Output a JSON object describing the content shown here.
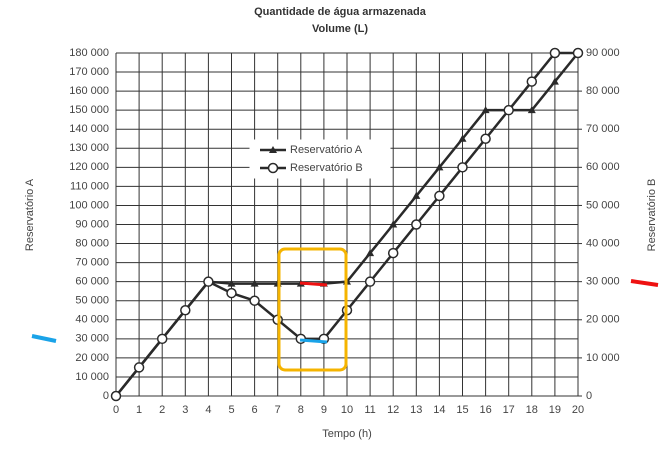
{
  "chart_data": {
    "type": "line",
    "title": "Quantidade de água armazenada",
    "subtitle": "Volume (L)",
    "x_label": "Tempo (h)",
    "y_label": "Reservatório A",
    "y2_label": "Reservatório B",
    "x": [
      0,
      1,
      2,
      3,
      4,
      5,
      6,
      7,
      8,
      9,
      10,
      11,
      12,
      13,
      14,
      15,
      16,
      17,
      18,
      19,
      20
    ],
    "xlim": [
      0,
      20
    ],
    "xticks": [
      0,
      1,
      2,
      3,
      4,
      5,
      6,
      7,
      8,
      9,
      10,
      11,
      12,
      13,
      14,
      15,
      16,
      17,
      18,
      19,
      20
    ],
    "ylim": [
      0,
      180000
    ],
    "yticks": [
      0,
      {
        "value": 10000,
        "label": "10 000"
      },
      {
        "value": 20000,
        "label": "20 000"
      },
      {
        "value": 30000,
        "label": "30 000"
      },
      {
        "value": 40000,
        "label": "40 000"
      },
      {
        "value": 50000,
        "label": "50 000"
      },
      {
        "value": 60000,
        "label": "60 000"
      },
      {
        "value": 70000,
        "label": "70 000"
      },
      {
        "value": 80000,
        "label": "80 000"
      },
      {
        "value": 90000,
        "label": "90 000"
      },
      {
        "value": 100000,
        "label": "100 000"
      },
      {
        "value": 110000,
        "label": "110 000"
      },
      {
        "value": 120000,
        "label": "120 000"
      },
      {
        "value": 130000,
        "label": "130 000"
      },
      {
        "value": 140000,
        "label": "140 000"
      },
      {
        "value": 150000,
        "label": "150 000"
      },
      {
        "value": 160000,
        "label": "160 000"
      },
      {
        "value": 170000,
        "label": "170 000"
      },
      {
        "value": 180000,
        "label": "180 000"
      }
    ],
    "y2lim": [
      0,
      90000
    ],
    "y2ticks": [
      0,
      {
        "value": 10000,
        "label": "10 000"
      },
      {
        "value": 20000,
        "label": "20 000"
      },
      {
        "value": 30000,
        "label": "30 000"
      },
      {
        "value": 40000,
        "label": "40 000"
      },
      {
        "value": 50000,
        "label": "50 000"
      },
      {
        "value": 60000,
        "label": "60 000"
      },
      {
        "value": 70000,
        "label": "70 000"
      },
      {
        "value": 80000,
        "label": "80 000"
      },
      {
        "value": 90000,
        "label": "90 000"
      }
    ],
    "grid": true,
    "series": [
      {
        "name": "Reservatório A",
        "color": "#2a2a2a",
        "marker": "triangle",
        "values": [
          0,
          15000,
          30000,
          45000,
          60000,
          59000,
          59000,
          59000,
          59000,
          59000,
          60000,
          75000,
          90000,
          105000,
          120000,
          135000,
          150000,
          150000,
          150000,
          165000,
          180000
        ]
      },
      {
        "name": "Reservatório B",
        "color": "#2a2a2a",
        "marker": "circle",
        "axis": "y2",
        "values": [
          0,
          7500,
          15000,
          22500,
          30000,
          27000,
          25000,
          20000,
          15000,
          15000,
          22500,
          30000,
          37500,
          45000,
          52500,
          60000,
          67500,
          75000,
          82500,
          90000,
          90000
        ]
      }
    ]
  }
}
